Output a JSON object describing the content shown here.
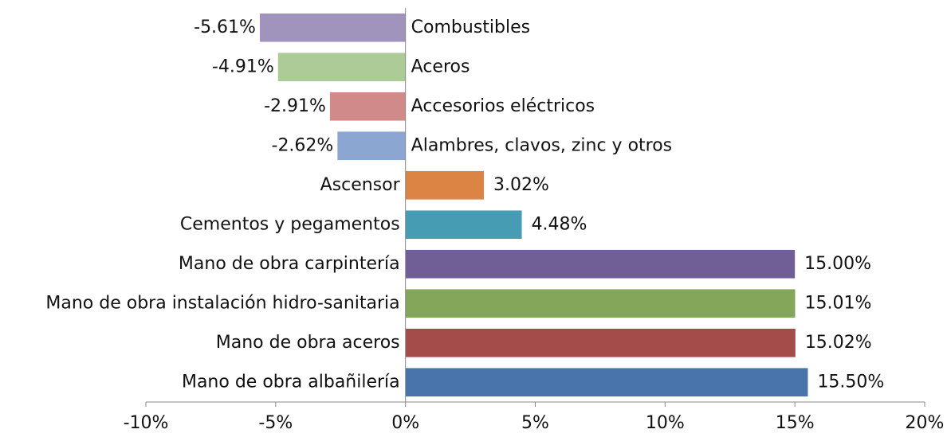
{
  "chart_data": {
    "type": "barh",
    "categories": [
      "Combustibles",
      "Aceros",
      "Accesorios eléctricos",
      "Alambres, clavos, zinc y otros",
      "Ascensor",
      "Cementos y pegamentos",
      "Mano de obra carpintería",
      "Mano de obra instalación hidro-sanitaria",
      "Mano de obra aceros",
      "Mano de obra albañilería"
    ],
    "values": [
      -5.61,
      -4.91,
      -2.91,
      -2.62,
      3.02,
      4.48,
      15.0,
      15.01,
      15.02,
      15.5
    ],
    "value_labels": [
      "-5.61%",
      "-4.91%",
      "-2.91%",
      "-2.62%",
      "3.02%",
      "4.48%",
      "15.00%",
      "15.01%",
      "15.02%",
      "15.50%"
    ],
    "colors": [
      "#a094bd",
      "#adcb97",
      "#cf8a89",
      "#8aa6d1",
      "#dc8443",
      "#469db3",
      "#705e97",
      "#84a65a",
      "#a44c4a",
      "#4874ab"
    ],
    "xlim": [
      -10,
      20
    ],
    "xticks": [
      {
        "value": -10,
        "label": "-10%"
      },
      {
        "value": -5,
        "label": "-5%"
      },
      {
        "value": 0,
        "label": "0%"
      },
      {
        "value": 5,
        "label": "5%"
      },
      {
        "value": 10,
        "label": "10%"
      },
      {
        "value": 15,
        "label": "15%"
      },
      {
        "value": 20,
        "label": "20%"
      }
    ]
  }
}
